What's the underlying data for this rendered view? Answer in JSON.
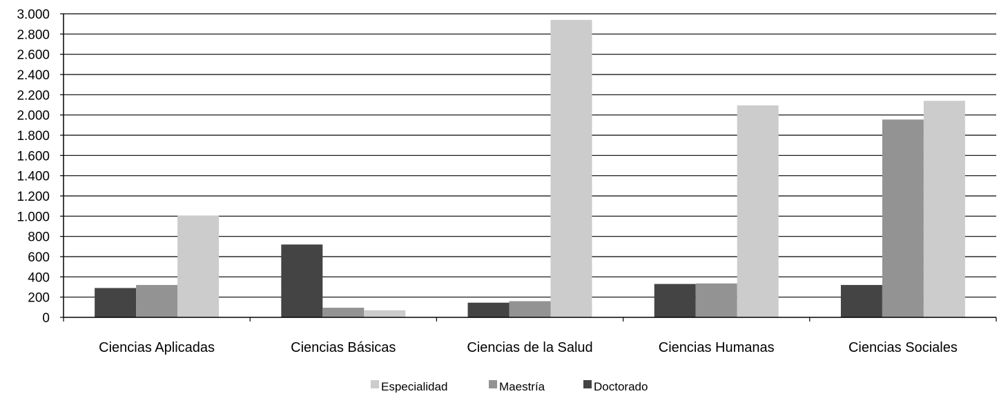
{
  "chart_data": {
    "type": "bar",
    "title": "",
    "xlabel": "",
    "ylabel": "",
    "categories": [
      "Ciencias Aplicadas",
      "Ciencias Básicas",
      "Ciencias de la Salud",
      "Ciencias Humanas",
      "Ciencias Sociales"
    ],
    "series": [
      {
        "name": "Doctorado",
        "color": "#444444",
        "values": [
          290,
          720,
          145,
          330,
          320
        ]
      },
      {
        "name": "Maestría",
        "color": "#939393",
        "values": [
          320,
          95,
          160,
          335,
          1955
        ]
      },
      {
        "name": "Especialidad",
        "color": "#cccccc",
        "values": [
          1005,
          70,
          2940,
          2095,
          2140
        ]
      }
    ],
    "ylim": [
      0,
      3000
    ],
    "yticks": [
      0,
      200,
      400,
      600,
      800,
      1000,
      1200,
      1400,
      1600,
      1800,
      2000,
      2200,
      2400,
      2600,
      2800,
      3000
    ],
    "ytick_labels": [
      "0",
      "200",
      "400",
      "600",
      "800",
      "1.000",
      "1.200",
      "1.400",
      "1.600",
      "1.800",
      "2.000",
      "2.200",
      "2.400",
      "2.600",
      "2.800",
      "3.000"
    ],
    "grid": true,
    "legend_position": "bottom",
    "legend_order": [
      "Especialidad",
      "Maestría",
      "Doctorado"
    ]
  }
}
